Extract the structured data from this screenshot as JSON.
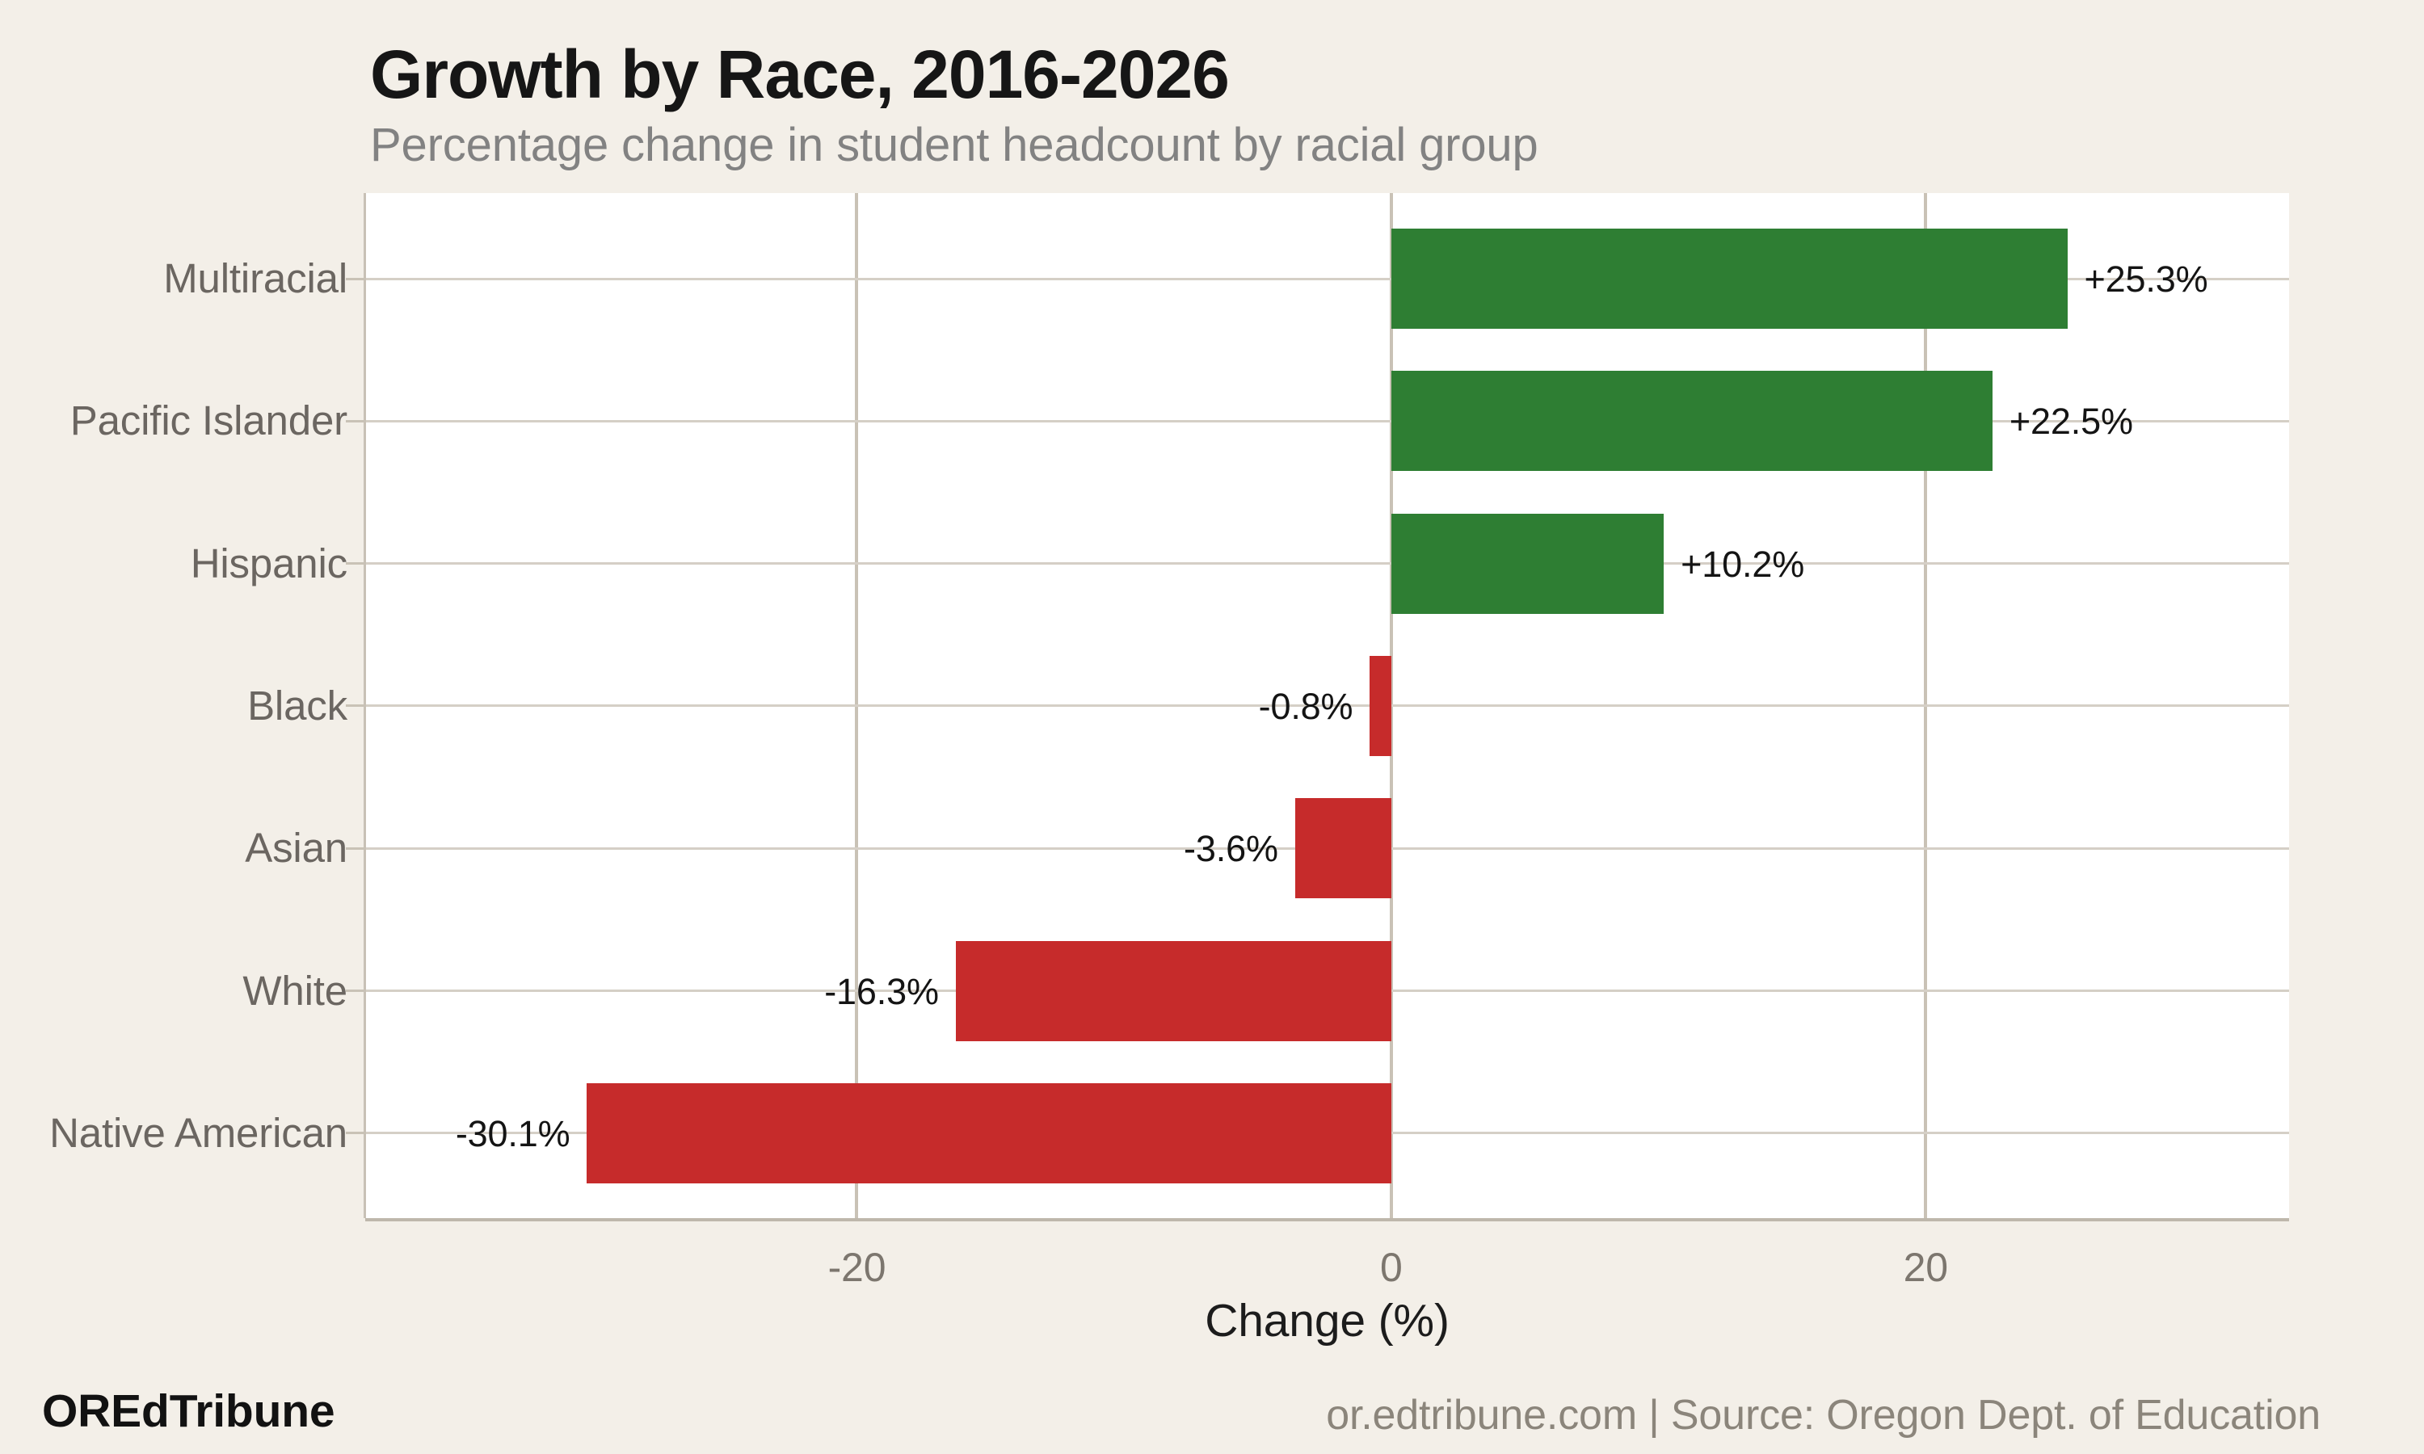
{
  "header": {
    "title": "Growth by Race, 2016-2026",
    "subtitle": "Percentage change in student headcount by racial group"
  },
  "chart_data": {
    "type": "bar",
    "orientation": "horizontal",
    "title": "Growth by Race, 2016-2026",
    "subtitle": "Percentage change in student headcount by racial group",
    "xlabel": "Change (%)",
    "categories": [
      "Multiracial",
      "Pacific Islander",
      "Hispanic",
      "Black",
      "Asian",
      "White",
      "Native American"
    ],
    "values": [
      25.3,
      22.5,
      10.2,
      -0.8,
      -3.6,
      -16.3,
      -30.1
    ],
    "value_labels": [
      "+25.3%",
      "+22.5%",
      "+10.2%",
      "-0.8%",
      "-3.6%",
      "-16.3%",
      "-30.1%"
    ],
    "xlim": [
      -38.4,
      33.6
    ],
    "x_ticks": [
      {
        "value": -20,
        "label": "-20"
      },
      {
        "value": 0,
        "label": "0"
      },
      {
        "value": 20,
        "label": "20"
      }
    ],
    "grid": true,
    "legend": false,
    "colors": {
      "positive": "#2e7e33",
      "negative": "#c62b2b",
      "plot_background": "#ffffff",
      "page_background": "#f3efe8",
      "gridline": "#d5cfc6"
    }
  },
  "footer": {
    "brand": "OREdTribune",
    "source": "or.edtribune.com | Source: Oregon Dept. of Education"
  }
}
